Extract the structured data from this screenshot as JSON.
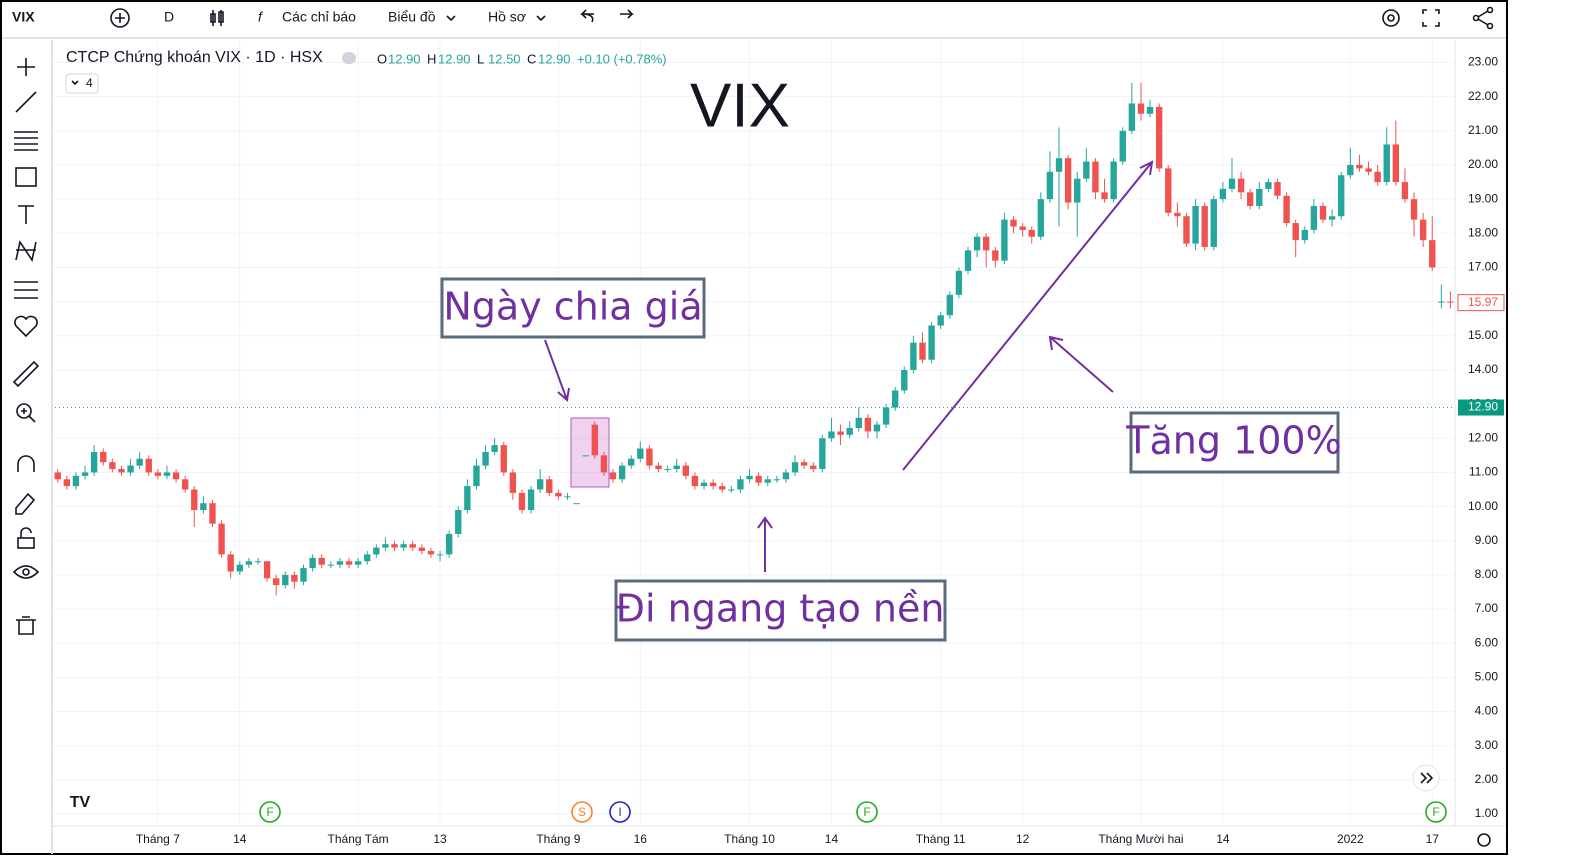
{
  "toolbar": {
    "symbol": "VIX",
    "interval": "D",
    "indicators": "Các chỉ báo",
    "chart": "Biểu đồ",
    "profile": "Hồ sơ"
  },
  "chart_data": {
    "type": "candlestick",
    "title": "CTCP Chứng khoán VIX · 1D · HSX",
    "ohlc_legend": [
      {
        "key": "O",
        "value": "12.90"
      },
      {
        "key": "H",
        "value": "12.90"
      },
      {
        "key": "L",
        "value": "12.50"
      },
      {
        "key": "C",
        "value": "12.90"
      }
    ],
    "change": "+0.10 (+0.78%)",
    "indicator_count": 4,
    "watermark": "VIX",
    "up_color": "#26a69a",
    "down_color": "#ef5350",
    "ohlc": [
      [
        11.0,
        11.1,
        10.7,
        10.8
      ],
      [
        10.8,
        10.9,
        10.5,
        10.6
      ],
      [
        10.6,
        11.0,
        10.5,
        10.9
      ],
      [
        10.9,
        11.2,
        10.8,
        11.0
      ],
      [
        11.0,
        11.8,
        10.9,
        11.6
      ],
      [
        11.6,
        11.7,
        11.2,
        11.3
      ],
      [
        11.3,
        11.4,
        11.0,
        11.1
      ],
      [
        11.1,
        11.2,
        10.9,
        11.0
      ],
      [
        11.0,
        11.4,
        10.9,
        11.2
      ],
      [
        11.2,
        11.6,
        11.1,
        11.4
      ],
      [
        11.4,
        11.5,
        10.9,
        11.0
      ],
      [
        11.0,
        11.1,
        10.8,
        10.9
      ],
      [
        10.9,
        11.2,
        10.8,
        11.0
      ],
      [
        11.0,
        11.1,
        10.7,
        10.8
      ],
      [
        10.8,
        10.9,
        10.4,
        10.5
      ],
      [
        10.5,
        10.6,
        9.4,
        9.9
      ],
      [
        9.9,
        10.3,
        9.8,
        10.1
      ],
      [
        10.1,
        10.2,
        9.4,
        9.5
      ],
      [
        9.5,
        9.6,
        8.5,
        8.6
      ],
      [
        8.6,
        8.7,
        7.9,
        8.1
      ],
      [
        8.1,
        8.4,
        8.0,
        8.3
      ],
      [
        8.3,
        8.5,
        8.2,
        8.4
      ],
      [
        8.4,
        8.5,
        8.3,
        8.4
      ],
      [
        8.4,
        8.4,
        7.8,
        7.9
      ],
      [
        7.9,
        8.0,
        7.4,
        7.7
      ],
      [
        7.7,
        8.1,
        7.6,
        8.0
      ],
      [
        8.0,
        8.1,
        7.6,
        7.8
      ],
      [
        7.8,
        8.3,
        7.7,
        8.2
      ],
      [
        8.2,
        8.6,
        8.1,
        8.5
      ],
      [
        8.5,
        8.6,
        8.2,
        8.3
      ],
      [
        8.3,
        8.4,
        8.2,
        8.3
      ],
      [
        8.3,
        8.5,
        8.2,
        8.4
      ],
      [
        8.4,
        8.5,
        8.2,
        8.3
      ],
      [
        8.3,
        8.5,
        8.2,
        8.4
      ],
      [
        8.4,
        8.7,
        8.3,
        8.6
      ],
      [
        8.6,
        8.9,
        8.5,
        8.8
      ],
      [
        8.8,
        9.1,
        8.7,
        8.9
      ],
      [
        8.9,
        9.0,
        8.7,
        8.8
      ],
      [
        8.8,
        9.0,
        8.7,
        8.9
      ],
      [
        8.9,
        9.0,
        8.7,
        8.8
      ],
      [
        8.8,
        8.9,
        8.6,
        8.7
      ],
      [
        8.7,
        8.8,
        8.5,
        8.6
      ],
      [
        8.6,
        8.7,
        8.4,
        8.6
      ],
      [
        8.6,
        9.3,
        8.5,
        9.2
      ],
      [
        9.2,
        10.0,
        9.1,
        9.9
      ],
      [
        9.9,
        10.8,
        9.8,
        10.6
      ],
      [
        10.6,
        11.4,
        10.5,
        11.2
      ],
      [
        11.2,
        11.8,
        11.1,
        11.6
      ],
      [
        11.6,
        12.0,
        11.5,
        11.8
      ],
      [
        11.8,
        11.9,
        10.9,
        11.0
      ],
      [
        11.0,
        11.1,
        10.2,
        10.4
      ],
      [
        10.4,
        10.5,
        9.8,
        9.9
      ],
      [
        9.9,
        10.6,
        9.8,
        10.5
      ],
      [
        10.5,
        11.1,
        10.4,
        10.8
      ],
      [
        10.8,
        10.9,
        10.3,
        10.4
      ],
      [
        10.4,
        10.5,
        10.2,
        10.3
      ],
      [
        10.3,
        10.4,
        10.2,
        10.3
      ],
      [
        10.1,
        10.1,
        10.1,
        10.1
      ],
      [
        11.5,
        11.5,
        11.5,
        11.5
      ],
      [
        12.4,
        12.5,
        11.4,
        11.5
      ],
      [
        11.5,
        11.6,
        10.9,
        11.0
      ],
      [
        11.0,
        11.1,
        10.7,
        10.8
      ],
      [
        10.8,
        11.3,
        10.7,
        11.2
      ],
      [
        11.2,
        11.5,
        11.1,
        11.4
      ],
      [
        11.4,
        11.9,
        11.3,
        11.7
      ],
      [
        11.7,
        11.8,
        11.1,
        11.2
      ],
      [
        11.2,
        11.3,
        11.0,
        11.1
      ],
      [
        11.1,
        11.2,
        11.0,
        11.1
      ],
      [
        11.1,
        11.4,
        11.0,
        11.2
      ],
      [
        11.2,
        11.3,
        10.8,
        10.9
      ],
      [
        10.9,
        11.0,
        10.5,
        10.6
      ],
      [
        10.6,
        10.8,
        10.5,
        10.7
      ],
      [
        10.7,
        10.8,
        10.5,
        10.6
      ],
      [
        10.6,
        10.7,
        10.4,
        10.5
      ],
      [
        10.5,
        10.6,
        10.4,
        10.5
      ],
      [
        10.5,
        10.9,
        10.4,
        10.8
      ],
      [
        10.8,
        11.1,
        10.7,
        10.9
      ],
      [
        10.9,
        11.0,
        10.6,
        10.7
      ],
      [
        10.7,
        10.9,
        10.6,
        10.8
      ],
      [
        10.8,
        10.9,
        10.7,
        10.8
      ],
      [
        10.8,
        11.1,
        10.7,
        11.0
      ],
      [
        11.0,
        11.5,
        10.9,
        11.3
      ],
      [
        11.3,
        11.4,
        11.1,
        11.2
      ],
      [
        11.2,
        11.3,
        11.0,
        11.1
      ],
      [
        11.1,
        12.1,
        11.0,
        12.0
      ],
      [
        12.0,
        12.6,
        11.9,
        12.2
      ],
      [
        12.2,
        12.4,
        11.8,
        12.1
      ],
      [
        12.1,
        12.5,
        12.0,
        12.3
      ],
      [
        12.3,
        12.9,
        12.2,
        12.6
      ],
      [
        12.6,
        12.7,
        12.0,
        12.2
      ],
      [
        12.2,
        12.5,
        12.0,
        12.4
      ],
      [
        12.4,
        13.0,
        12.3,
        12.9
      ],
      [
        12.9,
        13.5,
        12.8,
        13.4
      ],
      [
        13.4,
        14.1,
        13.3,
        14.0
      ],
      [
        14.0,
        15.0,
        13.9,
        14.8
      ],
      [
        14.8,
        15.1,
        14.2,
        14.3
      ],
      [
        14.3,
        15.4,
        14.2,
        15.3
      ],
      [
        15.3,
        15.7,
        15.2,
        15.6
      ],
      [
        15.6,
        16.3,
        15.5,
        16.2
      ],
      [
        16.2,
        17.0,
        16.1,
        16.9
      ],
      [
        16.9,
        17.6,
        16.8,
        17.5
      ],
      [
        17.5,
        18.0,
        17.3,
        17.9
      ],
      [
        17.9,
        18.0,
        17.0,
        17.5
      ],
      [
        17.5,
        17.6,
        17.0,
        17.2
      ],
      [
        17.2,
        18.6,
        17.1,
        18.4
      ],
      [
        18.4,
        18.5,
        18.0,
        18.2
      ],
      [
        18.2,
        18.3,
        17.9,
        18.1
      ],
      [
        18.1,
        18.2,
        17.7,
        17.9
      ],
      [
        17.9,
        19.2,
        17.8,
        19.0
      ],
      [
        19.0,
        20.4,
        18.9,
        19.8
      ],
      [
        19.8,
        21.1,
        18.2,
        20.2
      ],
      [
        20.2,
        20.3,
        18.7,
        18.9
      ],
      [
        18.9,
        19.8,
        17.9,
        19.6
      ],
      [
        19.6,
        20.5,
        19.5,
        20.1
      ],
      [
        20.1,
        20.2,
        19.0,
        19.2
      ],
      [
        19.2,
        19.6,
        18.9,
        19.0
      ],
      [
        19.0,
        20.2,
        18.9,
        20.1
      ],
      [
        20.1,
        21.1,
        20.0,
        21.0
      ],
      [
        21.0,
        22.4,
        20.9,
        21.8
      ],
      [
        21.8,
        22.4,
        21.3,
        21.5
      ],
      [
        21.5,
        21.9,
        21.4,
        21.7
      ],
      [
        21.7,
        21.8,
        19.8,
        19.9
      ],
      [
        19.9,
        20.0,
        18.5,
        18.6
      ],
      [
        18.6,
        18.9,
        18.2,
        18.5
      ],
      [
        18.5,
        18.6,
        17.6,
        17.7
      ],
      [
        17.7,
        19.0,
        17.5,
        18.8
      ],
      [
        18.8,
        18.9,
        17.5,
        17.6
      ],
      [
        17.6,
        19.1,
        17.5,
        19.0
      ],
      [
        19.0,
        19.5,
        18.9,
        19.3
      ],
      [
        19.3,
        20.2,
        19.2,
        19.6
      ],
      [
        19.6,
        19.8,
        19.0,
        19.2
      ],
      [
        19.2,
        19.3,
        18.7,
        18.8
      ],
      [
        18.8,
        19.5,
        18.7,
        19.3
      ],
      [
        19.3,
        19.6,
        19.2,
        19.5
      ],
      [
        19.5,
        19.6,
        19.0,
        19.1
      ],
      [
        19.1,
        19.2,
        18.2,
        18.3
      ],
      [
        18.3,
        18.4,
        17.3,
        17.8
      ],
      [
        17.8,
        18.2,
        17.7,
        18.1
      ],
      [
        18.1,
        19.0,
        18.0,
        18.8
      ],
      [
        18.8,
        18.9,
        18.3,
        18.4
      ],
      [
        18.4,
        18.7,
        18.2,
        18.5
      ],
      [
        18.5,
        19.8,
        18.4,
        19.7
      ],
      [
        19.7,
        20.5,
        19.6,
        20.0
      ],
      [
        20.0,
        20.3,
        19.8,
        19.9
      ],
      [
        19.9,
        20.1,
        19.7,
        19.8
      ],
      [
        19.8,
        20.0,
        19.4,
        19.5
      ],
      [
        19.5,
        21.1,
        19.4,
        20.6
      ],
      [
        20.6,
        21.3,
        19.4,
        19.5
      ],
      [
        19.5,
        19.9,
        18.9,
        19.0
      ],
      [
        19.0,
        19.2,
        17.9,
        18.4
      ],
      [
        18.4,
        18.6,
        17.6,
        17.8
      ],
      [
        17.8,
        18.5,
        16.9,
        17.0
      ],
      [
        16.0,
        16.5,
        15.8,
        16.0
      ],
      [
        16.0,
        16.3,
        15.8,
        15.97
      ]
    ],
    "xlim": [
      -0.3,
      153.5
    ],
    "xticks": [
      {
        "value": 11,
        "label": "Tháng 7"
      },
      {
        "value": 20,
        "label": "14"
      },
      {
        "value": 33,
        "label": "Tháng Tám"
      },
      {
        "value": 42,
        "label": "13"
      },
      {
        "value": 55,
        "label": "Tháng 9"
      },
      {
        "value": 64,
        "label": "16"
      },
      {
        "value": 76,
        "label": "Tháng 10"
      },
      {
        "value": 85,
        "label": "14"
      },
      {
        "value": 97,
        "label": "Tháng 11"
      },
      {
        "value": 106,
        "label": "12"
      },
      {
        "value": 119,
        "label": "Tháng Mười hai"
      },
      {
        "value": 128,
        "label": "14"
      },
      {
        "value": 142,
        "label": "2022"
      },
      {
        "value": 151,
        "label": "17"
      }
    ],
    "ylim": [
      0.65,
      23.6
    ],
    "yticks": [
      {
        "value": 1,
        "label": "1.00"
      },
      {
        "value": 2,
        "label": "2.00"
      },
      {
        "value": 3,
        "label": "3.00"
      },
      {
        "value": 4,
        "label": "4.00"
      },
      {
        "value": 5,
        "label": "5.00"
      },
      {
        "value": 6,
        "label": "6.00"
      },
      {
        "value": 7,
        "label": "7.00"
      },
      {
        "value": 8,
        "label": "8.00"
      },
      {
        "value": 9,
        "label": "9.00"
      },
      {
        "value": 10,
        "label": "10.00"
      },
      {
        "value": 11,
        "label": "11.00"
      },
      {
        "value": 12,
        "label": "12.00"
      },
      {
        "value": 13,
        "label": "13.00"
      },
      {
        "value": 14,
        "label": "14.00"
      },
      {
        "value": 15,
        "label": "15.00"
      },
      {
        "value": 16,
        "label": "16.00"
      },
      {
        "value": 17,
        "label": "17.00"
      },
      {
        "value": 18,
        "label": "18.00"
      },
      {
        "value": 19,
        "label": "19.00"
      },
      {
        "value": 20,
        "label": "20.00"
      },
      {
        "value": 21,
        "label": "21.00"
      },
      {
        "value": 22,
        "label": "22.00"
      },
      {
        "value": 23,
        "label": "23.00"
      }
    ],
    "grid": true,
    "price_line": {
      "value": 12.9,
      "label": "12.90"
    },
    "last_price": {
      "value": 15.97,
      "label": "15.97"
    },
    "events": [
      "F",
      "S",
      "I",
      "F",
      "F"
    ],
    "annotations": [
      "Ngày chia giá",
      "Đi ngang tạo nền",
      "Tăng 100%"
    ]
  }
}
